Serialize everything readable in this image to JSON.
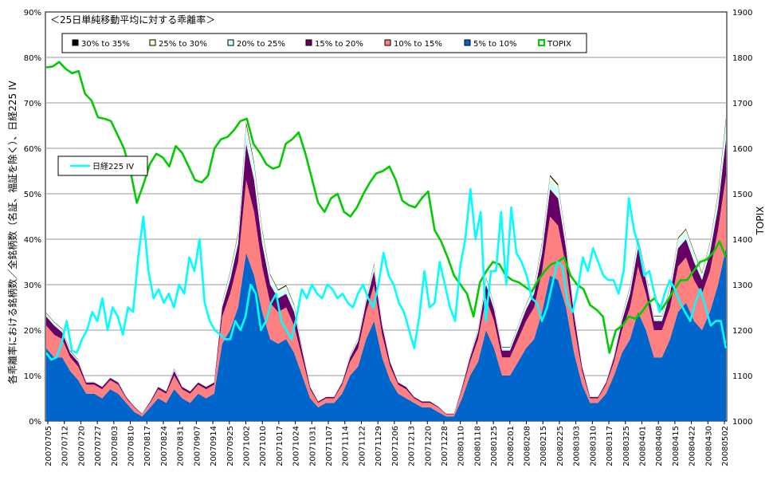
{
  "chart_data": {
    "type": "area",
    "title": "",
    "subtitle": "＜25日単純移動平均に対する乖離率＞",
    "ylabel_left": "各乖離率における銘柄数／全銘柄数（名証、福証を除く）、日経225 IV",
    "ylabel_right": "TOPIX",
    "y_left_ticks": [
      "0%",
      "10%",
      "20%",
      "30%",
      "40%",
      "50%",
      "60%",
      "70%",
      "80%",
      "90%"
    ],
    "y_right_ticks": [
      "1000",
      "1100",
      "1200",
      "1300",
      "1400",
      "1500",
      "1600",
      "1700",
      "1800",
      "1900"
    ],
    "ylim_left": [
      0,
      90
    ],
    "ylim_right": [
      1000,
      1900
    ],
    "grid": true,
    "x_tick_labels": [
      "20070705",
      "20070712",
      "20070720",
      "20070727",
      "20070803",
      "20070810",
      "20070817",
      "20070824",
      "20070831",
      "20070907",
      "20070914",
      "20070925",
      "20071002",
      "20071010",
      "20071017",
      "20071024",
      "20071031",
      "20071107",
      "20071114",
      "20071122",
      "20071129",
      "20071206",
      "20071213",
      "20071220",
      "20071228",
      "20080110",
      "20080118",
      "20080125",
      "20080201",
      "20080208",
      "20080215",
      "20080225",
      "20080303",
      "20080310",
      "20080317",
      "20080325",
      "20080401",
      "20080408",
      "20080415",
      "20080422",
      "20080430",
      "20080502"
    ],
    "legend": [
      {
        "name": "30% to 35%",
        "color": "#000000"
      },
      {
        "name": "25% to 30%",
        "color": "#ffffcc"
      },
      {
        "name": "20% to 25%",
        "color": "#ccffff"
      },
      {
        "name": "15% to 20%",
        "color": "#660066"
      },
      {
        "name": "10% to 15%",
        "color": "#ff8080"
      },
      {
        "name": "5% to 10%",
        "color": "#0066cc"
      },
      {
        "name": "TOPIX",
        "color": "#00cc00"
      }
    ],
    "iv_legend": {
      "name": "日経225 IV",
      "color": "#00ffff"
    },
    "series": [
      {
        "name": "5% to 10%",
        "color": "#0066cc",
        "values": [
          16,
          14,
          14,
          11,
          9,
          6,
          6,
          5,
          7,
          6,
          4,
          2,
          1,
          3,
          5,
          4,
          7,
          5,
          4,
          6,
          5,
          6,
          17,
          20,
          25,
          37,
          32,
          24,
          18,
          17,
          18,
          15,
          10,
          5,
          3,
          4,
          4,
          6,
          10,
          12,
          18,
          22,
          14,
          9,
          6,
          5,
          4,
          3,
          3,
          2,
          1,
          1,
          5,
          10,
          13,
          20,
          16,
          10,
          10,
          13,
          16,
          18,
          24,
          32,
          31,
          25,
          15,
          8,
          4,
          4,
          6,
          10,
          15,
          18,
          24,
          20,
          14,
          14,
          18,
          24,
          26,
          22,
          20,
          24,
          30,
          38
        ]
      },
      {
        "name": "10% to 15%",
        "color": "#ff8080",
        "values": [
          5,
          5,
          4,
          3,
          3,
          2,
          2,
          2,
          2,
          2,
          1,
          1,
          0.5,
          1,
          2,
          2,
          3,
          2,
          2,
          2,
          2,
          2,
          6,
          8,
          10,
          16,
          14,
          10,
          8,
          7,
          7,
          6,
          4,
          2,
          1,
          1,
          1,
          2,
          3,
          4,
          6,
          8,
          5,
          3,
          2,
          2,
          1,
          1,
          1,
          1,
          0.5,
          0.5,
          2,
          3,
          5,
          7,
          6,
          4,
          4,
          5,
          6,
          7,
          9,
          13,
          12,
          9,
          6,
          3,
          1,
          1,
          2,
          3,
          5,
          7,
          10,
          8,
          6,
          6,
          7,
          10,
          10,
          9,
          8,
          9,
          12,
          16
        ]
      },
      {
        "name": "15% to 20%",
        "color": "#660066",
        "values": [
          2,
          2,
          1.5,
          1,
          1,
          0.5,
          0.5,
          0.5,
          0.5,
          0.5,
          0.3,
          0.2,
          0.1,
          0.3,
          0.5,
          0.5,
          1,
          0.5,
          0.5,
          0.5,
          0.5,
          0.5,
          2,
          3,
          4,
          8,
          7,
          5,
          4,
          3,
          3,
          3,
          1.5,
          0.5,
          0.3,
          0.3,
          0.3,
          0.5,
          1,
          1.5,
          2,
          3,
          2,
          1,
          0.5,
          0.5,
          0.3,
          0.3,
          0.3,
          0.2,
          0.1,
          0.1,
          0.5,
          1,
          1.5,
          3,
          2.5,
          1.5,
          1.5,
          2,
          2.5,
          3,
          4,
          6,
          6,
          4,
          2.5,
          1,
          0.3,
          0.3,
          0.5,
          1,
          2,
          3,
          4,
          3,
          2,
          2,
          3,
          4,
          4,
          4,
          3,
          4,
          5,
          8
        ]
      },
      {
        "name": "20% to 25%",
        "color": "#ccffff",
        "values": [
          0.5,
          0.5,
          0.5,
          0.3,
          0.3,
          0.2,
          0.2,
          0.2,
          0.2,
          0.2,
          0.1,
          0.1,
          0,
          0.1,
          0.2,
          0.2,
          0.3,
          0.2,
          0.2,
          0.2,
          0.2,
          0.2,
          0.8,
          1.2,
          1.5,
          3,
          2.5,
          2,
          1.5,
          1.2,
          1.2,
          1,
          0.5,
          0.2,
          0.1,
          0.1,
          0.1,
          0.2,
          0.3,
          0.5,
          0.8,
          1,
          0.6,
          0.3,
          0.2,
          0.2,
          0.1,
          0.1,
          0.1,
          0.1,
          0,
          0,
          0.2,
          0.3,
          0.5,
          1,
          0.8,
          0.5,
          0.5,
          0.7,
          0.8,
          1,
          1.5,
          2,
          2,
          1.5,
          0.8,
          0.3,
          0.1,
          0.1,
          0.2,
          0.3,
          0.7,
          1,
          1.5,
          1,
          0.7,
          0.7,
          1,
          1.5,
          1.5,
          1.5,
          1,
          1.5,
          2,
          3
        ]
      },
      {
        "name": "25% to 30%",
        "color": "#ffffcc",
        "values": [
          0.2,
          0.2,
          0.2,
          0.1,
          0.1,
          0.1,
          0.1,
          0.1,
          0.1,
          0.1,
          0,
          0,
          0,
          0,
          0.1,
          0.1,
          0.1,
          0.1,
          0.1,
          0.1,
          0.1,
          0.1,
          0.3,
          0.5,
          0.6,
          1.2,
          1,
          0.8,
          0.6,
          0.5,
          0.5,
          0.4,
          0.2,
          0.1,
          0,
          0,
          0,
          0.1,
          0.1,
          0.2,
          0.3,
          0.4,
          0.2,
          0.1,
          0.1,
          0.1,
          0,
          0,
          0,
          0,
          0,
          0,
          0.1,
          0.1,
          0.2,
          0.4,
          0.3,
          0.2,
          0.2,
          0.3,
          0.3,
          0.4,
          0.6,
          0.8,
          0.8,
          0.6,
          0.3,
          0.1,
          0,
          0,
          0.1,
          0.1,
          0.3,
          0.4,
          0.6,
          0.4,
          0.3,
          0.3,
          0.4,
          0.6,
          0.6,
          0.6,
          0.4,
          0.6,
          0.8,
          1.2
        ]
      },
      {
        "name": "30% to 35%",
        "color": "#000000",
        "values": [
          0.1,
          0.1,
          0.1,
          0.1,
          0.1,
          0,
          0,
          0,
          0,
          0,
          0,
          0,
          0,
          0,
          0,
          0,
          0.1,
          0,
          0,
          0,
          0,
          0,
          0.1,
          0.2,
          0.3,
          0.5,
          0.4,
          0.3,
          0.2,
          0.2,
          0.2,
          0.2,
          0.1,
          0,
          0,
          0,
          0,
          0,
          0.1,
          0.1,
          0.1,
          0.2,
          0.1,
          0,
          0,
          0,
          0,
          0,
          0,
          0,
          0,
          0,
          0,
          0.1,
          0.1,
          0.2,
          0.1,
          0.1,
          0.1,
          0.1,
          0.1,
          0.2,
          0.3,
          0.3,
          0.3,
          0.2,
          0.1,
          0,
          0,
          0,
          0,
          0.1,
          0.1,
          0.2,
          0.2,
          0.2,
          0.1,
          0.1,
          0.2,
          0.2,
          0.2,
          0.2,
          0.2,
          0.2,
          0.3,
          0.5
        ]
      }
    ],
    "lines": [
      {
        "name": "TOPIX",
        "axis": "right",
        "color": "#00cc00",
        "values": [
          1778,
          1780,
          1790,
          1775,
          1765,
          1770,
          1720,
          1705,
          1668,
          1665,
          1660,
          1630,
          1600,
          1550,
          1480,
          1520,
          1565,
          1588,
          1580,
          1560,
          1605,
          1590,
          1560,
          1530,
          1525,
          1540,
          1600,
          1620,
          1625,
          1640,
          1660,
          1665,
          1610,
          1590,
          1565,
          1555,
          1560,
          1610,
          1620,
          1635,
          1590,
          1535,
          1480,
          1460,
          1490,
          1500,
          1460,
          1450,
          1470,
          1500,
          1525,
          1545,
          1550,
          1560,
          1530,
          1485,
          1475,
          1470,
          1490,
          1505,
          1420,
          1395,
          1360,
          1320,
          1300,
          1280,
          1230,
          1305,
          1330,
          1350,
          1345,
          1320,
          1310,
          1305,
          1295,
          1285,
          1310,
          1330,
          1345,
          1350,
          1360,
          1320,
          1300,
          1290,
          1255,
          1245,
          1230,
          1150,
          1200,
          1210,
          1230,
          1225,
          1240,
          1260,
          1270,
          1245,
          1265,
          1290,
          1310,
          1310,
          1330,
          1350,
          1355,
          1370,
          1395,
          1360
        ]
      },
      {
        "name": "日経225 IV",
        "axis": "left",
        "color": "#00ffff",
        "values": [
          15,
          13.5,
          14,
          17,
          22,
          15.5,
          15,
          18,
          20,
          24,
          22,
          27,
          20,
          25,
          23,
          19,
          25,
          24,
          36,
          45,
          33,
          27,
          29,
          26,
          28,
          25,
          30,
          28,
          36,
          33,
          40,
          26,
          22,
          20,
          19,
          18,
          18,
          22,
          20,
          23,
          30,
          28,
          20,
          22,
          26,
          28,
          22,
          20,
          18,
          23,
          29,
          27,
          30,
          28,
          27,
          30,
          29,
          27,
          28,
          26,
          25,
          28,
          30,
          27,
          25,
          30,
          37,
          32,
          30,
          26,
          24,
          20,
          16,
          23,
          33,
          25,
          26,
          35,
          30,
          25,
          22,
          34,
          40,
          51,
          40,
          46,
          22,
          33,
          33,
          46,
          30,
          47,
          37,
          35,
          32,
          27,
          26,
          22,
          25,
          30,
          35,
          34,
          26,
          24,
          29,
          36,
          33,
          38,
          35,
          32,
          31,
          31,
          28,
          33,
          49,
          42,
          38,
          32,
          33,
          28,
          24,
          28,
          31,
          29,
          26,
          24,
          22,
          26,
          29,
          25,
          21,
          22,
          22,
          16
        ]
      }
    ]
  }
}
